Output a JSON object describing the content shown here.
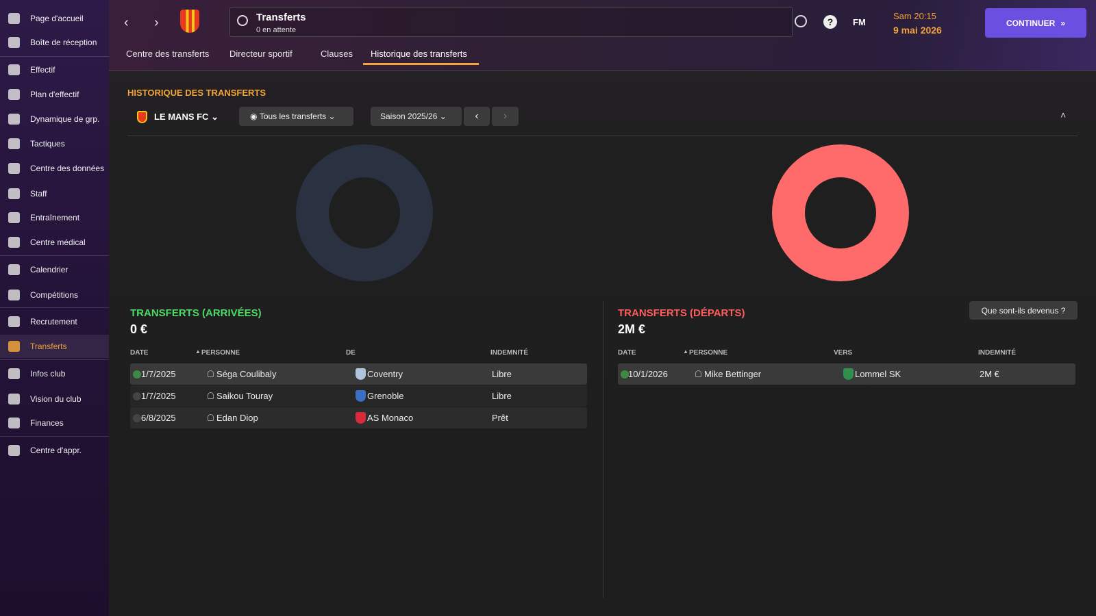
{
  "sidebar": {
    "items": [
      "Page d'accueil",
      "Boîte de réception",
      "Effectif",
      "Plan d'effectif",
      "Dynamique de grp.",
      "Tactiques",
      "Centre des données",
      "Staff",
      "Entraînement",
      "Centre médical",
      "Calendrier",
      "Compétitions",
      "Recrutement",
      "Transferts",
      "Infos club",
      "Vision du club",
      "Finances",
      "Centre d'appr."
    ],
    "active": 13
  },
  "header": {
    "title": "Transferts",
    "subtitle": "0 en attente",
    "fm": "FM",
    "time": "Sam 20:15",
    "date": "9 mai 2026",
    "continue": "CONTINUER"
  },
  "tabs": [
    "Centre des transferts",
    "Directeur sportif",
    "Clauses",
    "Historique des transferts"
  ],
  "section_title": "HISTORIQUE DES TRANSFERTS",
  "filters": {
    "club": "LE MANS FC",
    "view": "Tous les transferts",
    "season": "Saison 2025/26"
  },
  "arrivals": {
    "title": "TRANSFERTS (ARRIVÉES)",
    "total": "0 €",
    "columns": [
      "DATE",
      "PERSONNE",
      "DE",
      "INDEMNITÉ"
    ],
    "rows": [
      [
        "1/7/2025",
        "Séga Coulibaly",
        "Coventry",
        "Libre"
      ],
      [
        "1/7/2025",
        "Saikou Touray",
        "Grenoble",
        "Libre"
      ],
      [
        "6/8/2025",
        "Edan Diop",
        "AS Monaco",
        "Prêt"
      ]
    ]
  },
  "departures": {
    "title": "TRANSFERTS (DÉPARTS)",
    "total": "2M €",
    "button": "Que sont-ils devenus ?",
    "columns": [
      "DATE",
      "PERSONNE",
      "VERS",
      "INDEMNITÉ"
    ],
    "rows": [
      [
        "10/1/2026",
        "Mike Bettinger",
        "Lommel SK",
        "2M €"
      ]
    ]
  }
}
